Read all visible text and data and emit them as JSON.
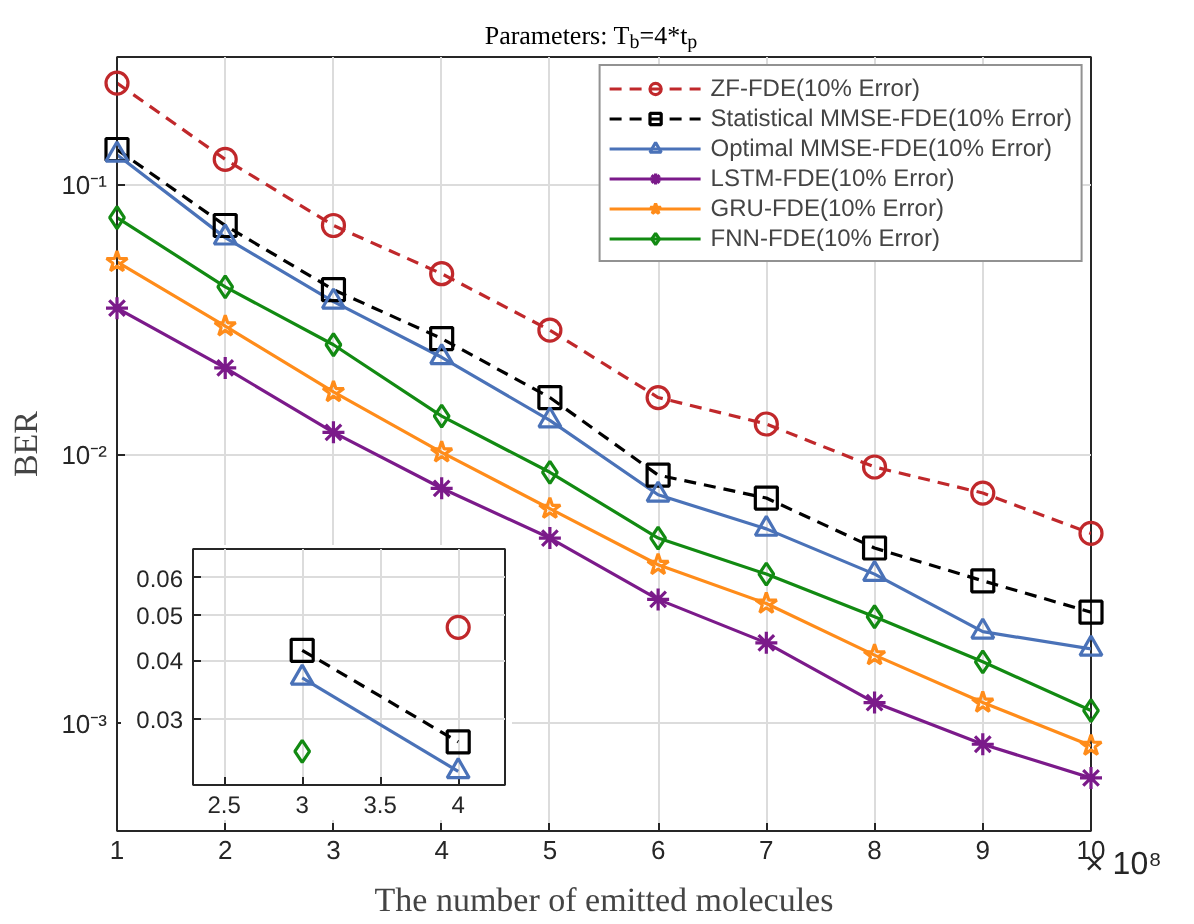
{
  "chart_data": [
    {
      "type": "line",
      "title": "Parameters: T$_{b}$=4*t$_{p}$",
      "xlabel": "The number of emitted molecules",
      "ylabel": "BER",
      "x": [
        1,
        2,
        3,
        4,
        5,
        6,
        7,
        8,
        9,
        10
      ],
      "series": [
        {
          "name": "ZF-FDE(10% Error)",
          "color": "#c0282b",
          "marker": "circle",
          "line_style": "dashed",
          "values": [
            0.24,
            0.125,
            0.071,
            0.047,
            0.029,
            0.0163,
            0.013,
            0.009,
            0.0072,
            0.0051
          ]
        },
        {
          "name": "Statistical MMSE-FDE(10% Error)",
          "color": "#000000",
          "marker": "square",
          "line_style": "dashed",
          "values": [
            0.136,
            0.071,
            0.041,
            0.027,
            0.0163,
            0.0084,
            0.0069,
            0.0045,
            0.0034,
            0.0026
          ]
        },
        {
          "name": "Optimal MMSE-FDE(10% Error)",
          "color": "#4a72b8",
          "marker": "triangle",
          "line_style": "solid",
          "values": [
            0.13,
            0.064,
            0.037,
            0.023,
            0.0134,
            0.0071,
            0.0053,
            0.0036,
            0.0022,
            0.0019
          ]
        },
        {
          "name": "LSTM-FDE(10% Error)",
          "color": "#7b1a8a",
          "marker": "cross",
          "line_style": "solid",
          "values": [
            0.035,
            0.021,
            0.0121,
            0.0075,
            0.0049,
            0.0029,
            0.002,
            0.0012,
            0.00084,
            0.00063
          ]
        },
        {
          "name": "GRU-FDE(10% Error)",
          "color": "#ff8c1a",
          "marker": "star",
          "line_style": "solid",
          "values": [
            0.052,
            0.03,
            0.0171,
            0.0102,
            0.0063,
            0.0039,
            0.0028,
            0.0018,
            0.0012,
            0.00083
          ]
        },
        {
          "name": "FNN-FDE(10% Error)",
          "color": "#128a12",
          "marker": "diamond",
          "line_style": "solid",
          "values": [
            0.076,
            0.042,
            0.0256,
            0.0139,
            0.0086,
            0.0049,
            0.0036,
            0.0025,
            0.0017,
            0.00112
          ]
        }
      ],
      "xlim": [
        1,
        10
      ],
      "xticks": [
        1,
        2,
        3,
        4,
        5,
        6,
        7,
        8,
        9,
        10
      ],
      "ylim": [
        0.0004,
        0.3
      ],
      "yticks": [
        {
          "value": 0.001,
          "label": "10⁻³"
        },
        {
          "value": 0.01,
          "label": "10⁻²"
        },
        {
          "value": 0.1,
          "label": "10⁻¹"
        }
      ],
      "log": "y",
      "grid": true,
      "legend": "top right",
      "annotations": [
        "× 10⁸"
      ]
    },
    {
      "type": "line",
      "x": [
        3,
        4
      ],
      "series": [
        {
          "color": "#c0282b",
          "marker": "circle",
          "line_style": "dashed",
          "values": [
            null,
            0.047
          ]
        },
        {
          "color": "#000000",
          "marker": "square",
          "line_style": "dashed",
          "values": [
            0.042,
            0.0268
          ]
        },
        {
          "color": "#4a72b8",
          "marker": "triangle",
          "line_style": "solid",
          "values": [
            0.0367,
            0.0232
          ]
        },
        {
          "color": "#128a12",
          "marker": "diamond",
          "line_style": "solid",
          "values": [
            0.0256,
            null
          ]
        }
      ],
      "xlim": [
        2.3,
        4.3
      ],
      "xticks": [
        2.5,
        3,
        3.5,
        4
      ],
      "ylim": [
        0.0217,
        0.069
      ],
      "yticks": [
        0.03,
        0.04,
        0.05,
        0.06
      ],
      "log": "y",
      "grid": true
    }
  ]
}
